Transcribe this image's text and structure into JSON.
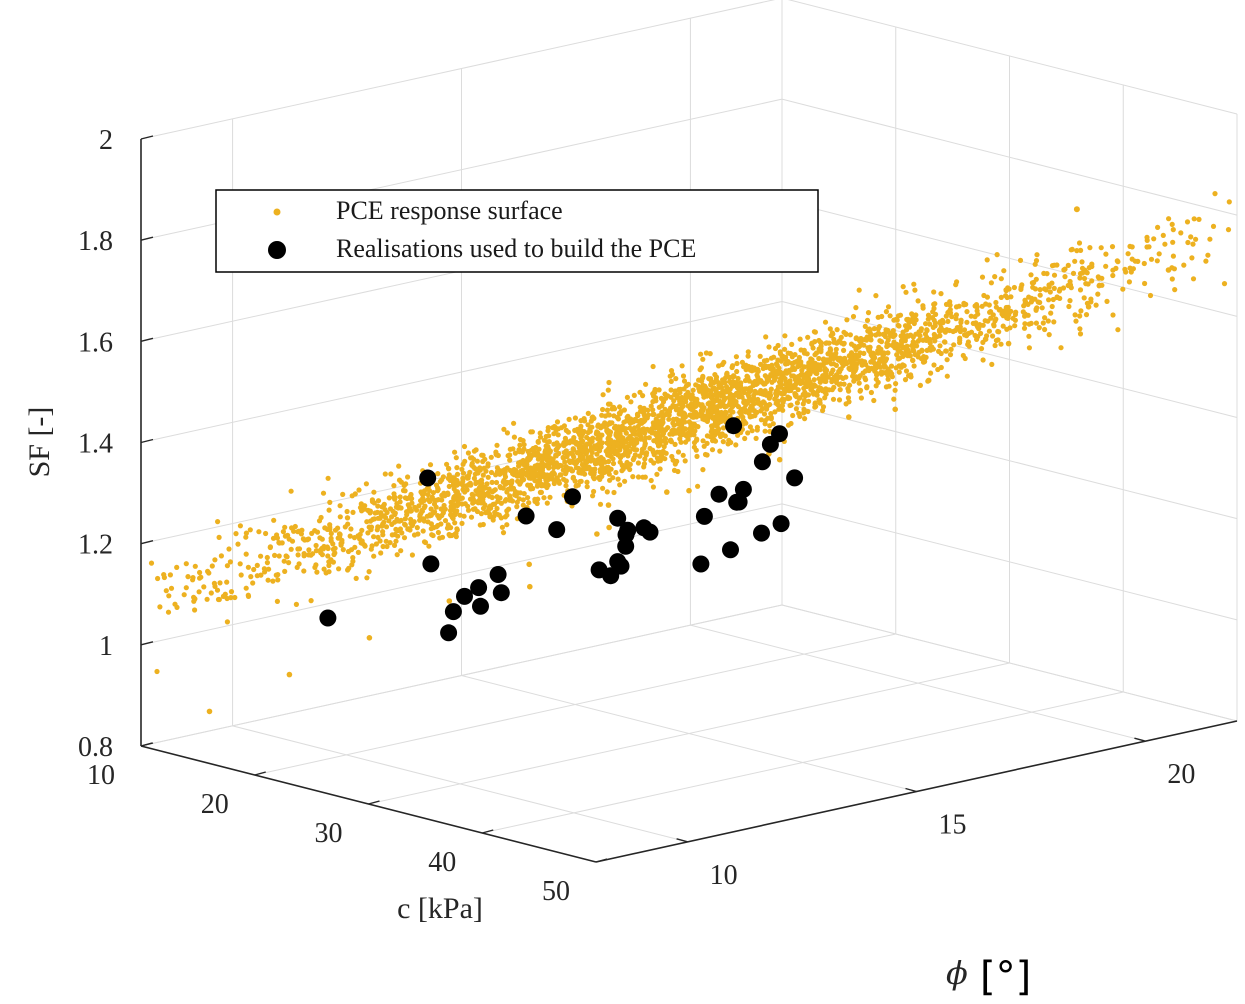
{
  "chart_data": {
    "type": "scatter3d",
    "xlabel": "c [kPa]",
    "ylabel": "ϕ [°]",
    "ylabel_symbol": "ϕ",
    "ylabel_unit": "[°]",
    "zlabel": "SF [-]",
    "xlim": [
      10,
      50
    ],
    "ylim": [
      8,
      22
    ],
    "zlim": [
      0.8,
      2.0
    ],
    "x_ticks": [
      "10",
      "20",
      "30",
      "40",
      "50"
    ],
    "y_ticks": [
      "10",
      "15",
      "20"
    ],
    "z_ticks": [
      "0.8",
      "1",
      "1.2",
      "1.4",
      "1.6",
      "1.8",
      "2"
    ],
    "grid": true,
    "legend_position": "top-left",
    "colors": {
      "surface": "#EDB120",
      "realisations": "#000000"
    },
    "series": [
      {
        "name": "PCE response surface",
        "marker": "small-dot",
        "approx_count": 10000,
        "trend": "SF increases with c and phi; cloud spans SF 0.85 to 1.85",
        "x": [
          12,
          15,
          18,
          21,
          24,
          27,
          30,
          33,
          36,
          39,
          42,
          45,
          48,
          42,
          20,
          35,
          28,
          44,
          16,
          38
        ],
        "y": [
          9,
          10,
          11,
          12,
          13,
          14,
          15,
          16,
          17,
          18,
          19,
          20,
          21,
          14,
          17,
          12,
          20,
          18,
          15,
          11
        ],
        "z": [
          0.86,
          0.93,
          1.0,
          1.07,
          1.14,
          1.21,
          1.28,
          1.35,
          1.42,
          1.49,
          1.56,
          1.63,
          1.7,
          1.43,
          1.18,
          1.34,
          1.33,
          1.6,
          1.01,
          1.32
        ]
      },
      {
        "name": "Realisations used to build the PCE",
        "marker": "large-filled-circle",
        "x": [
          26.5,
          30.9,
          27.8,
          34.6,
          40.3,
          21.8,
          33.2,
          38.9,
          27.2,
          31.4,
          22.0,
          30.6,
          40.8,
          41.7,
          36.0,
          30.0,
          35.0,
          36.5,
          34.9,
          32.6,
          38.2,
          38.2,
          37.6,
          32.0,
          36.9,
          41.3,
          35.0,
          39.5,
          43.1,
          39.3,
          44.5,
          34.6,
          44.4,
          42.3,
          45.6,
          34.8,
          46.0
        ],
        "y": [
          11.7,
          13.4,
          10.4,
          12.3,
          12.7,
          11.4,
          15.3,
          14.8,
          11.1,
          13.8,
          9.1,
          9.6,
          13.9,
          13.0,
          11.8,
          10.9,
          14.8,
          11.9,
          12.4,
          9.8,
          13.3,
          11.0,
          14.3,
          9.6,
          12.3,
          14.5,
          12.2,
          11.3,
          12.4,
          9.8,
          13.0,
          10.3,
          13.2,
          9.4,
          13.1,
          8.1,
          12.0
        ],
        "z": [
          1.16,
          1.23,
          1.12,
          1.22,
          1.24,
          1.16,
          1.27,
          1.27,
          1.15,
          1.23,
          1.1,
          1.11,
          1.28,
          1.27,
          1.21,
          1.16,
          1.29,
          1.23,
          1.25,
          1.17,
          1.31,
          1.25,
          1.34,
          1.19,
          1.3,
          1.38,
          1.31,
          1.33,
          1.4,
          1.36,
          1.46,
          1.35,
          1.49,
          1.45,
          1.52,
          1.47,
          1.56
        ]
      }
    ]
  }
}
